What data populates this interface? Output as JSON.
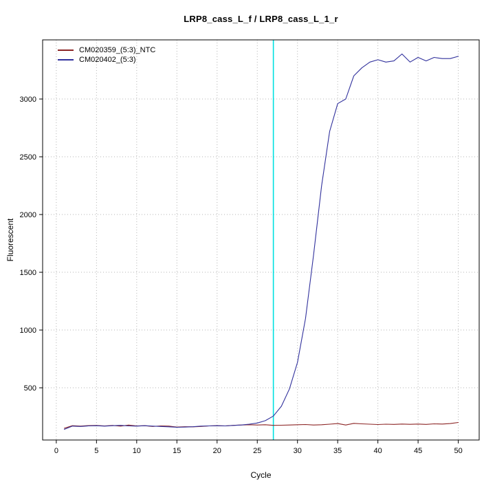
{
  "chart_data": {
    "type": "line",
    "title": "LRP8_cass_L_f / LRP8_cass_L_1_r",
    "xlabel": "Cycle",
    "ylabel": "Fluorescent",
    "xlim": [
      -1.7,
      52.6
    ],
    "ylim": [
      48,
      3512
    ],
    "x_ticks": [
      0,
      5,
      10,
      15,
      20,
      25,
      30,
      35,
      40,
      45,
      50
    ],
    "y_ticks": [
      500,
      1000,
      1500,
      2000,
      2500,
      3000
    ],
    "grid": "dotted",
    "grid_color": "#b3b3b3",
    "legend_position": "top-left",
    "threshold_line": {
      "x": 27,
      "color": "#00e0e0"
    },
    "x": [
      1,
      2,
      3,
      4,
      5,
      6,
      7,
      8,
      9,
      10,
      11,
      12,
      13,
      14,
      15,
      16,
      17,
      18,
      19,
      20,
      21,
      22,
      23,
      24,
      25,
      26,
      27,
      28,
      29,
      30,
      31,
      32,
      33,
      34,
      35,
      36,
      37,
      38,
      39,
      40,
      41,
      42,
      43,
      44,
      45,
      46,
      47,
      48,
      49,
      50
    ],
    "series": [
      {
        "name": "CM020359_(5:3)_NTC",
        "color": "#8b2323",
        "values": [
          150,
          172,
          168,
          173,
          174,
          170,
          174,
          168,
          177,
          170,
          172,
          165,
          170,
          168,
          160,
          163,
          162,
          165,
          170,
          172,
          170,
          175,
          178,
          180,
          178,
          180,
          175,
          176,
          178,
          180,
          182,
          178,
          180,
          185,
          190,
          178,
          192,
          188,
          185,
          182,
          185,
          183,
          186,
          184,
          186,
          183,
          188,
          186,
          190,
          200
        ]
      },
      {
        "name": "CM020402_(5:3)",
        "color": "#30309c",
        "values": [
          140,
          168,
          165,
          170,
          172,
          168,
          172,
          175,
          170,
          168,
          172,
          168,
          165,
          162,
          158,
          160,
          163,
          168,
          170,
          172,
          170,
          174,
          178,
          185,
          195,
          215,
          255,
          340,
          490,
          720,
          1100,
          1650,
          2250,
          2720,
          2960,
          3000,
          3200,
          3270,
          3320,
          3340,
          3320,
          3330,
          3390,
          3320,
          3360,
          3330,
          3360,
          3350,
          3350,
          3370
        ]
      }
    ]
  }
}
